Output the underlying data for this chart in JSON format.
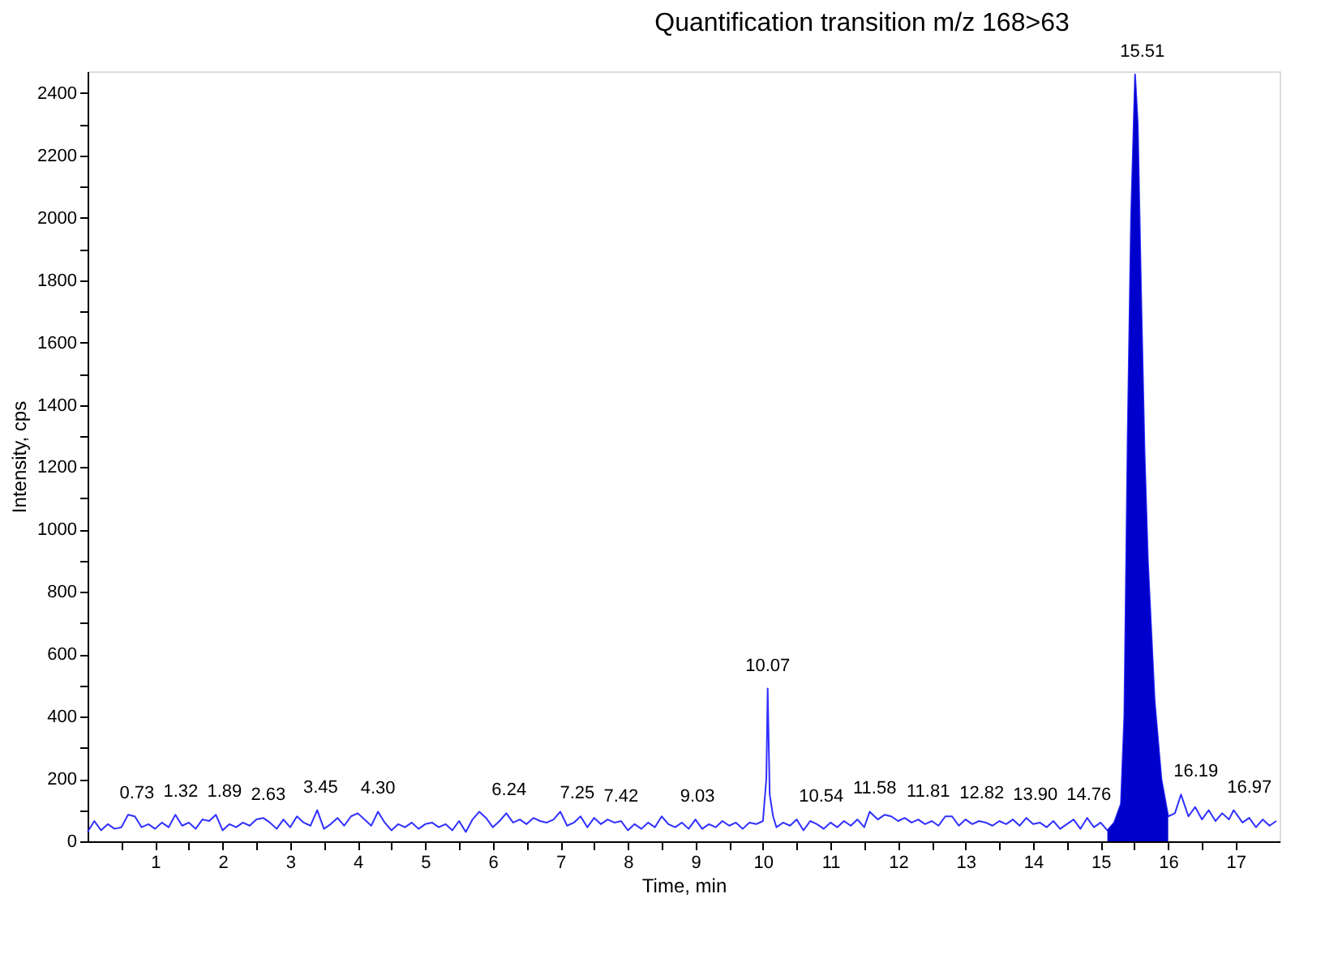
{
  "chart_data": {
    "type": "line",
    "title": "Quantification transition m/z 168>63",
    "xlabel": "Time, min",
    "ylabel": "Intensity, cps",
    "xlim": [
      0,
      17.65
    ],
    "ylim": [
      0,
      2470
    ],
    "xticks": [
      {
        "value": 0.5,
        "label": null
      },
      1,
      {
        "value": 1.5,
        "label": null
      },
      2,
      {
        "value": 2.5,
        "label": null
      },
      3,
      {
        "value": 3.5,
        "label": null
      },
      4,
      {
        "value": 4.5,
        "label": null
      },
      5,
      {
        "value": 5.5,
        "label": null
      },
      6,
      {
        "value": 6.5,
        "label": null
      },
      7,
      {
        "value": 7.5,
        "label": null
      },
      8,
      {
        "value": 8.5,
        "label": null
      },
      9,
      {
        "value": 9.5,
        "label": null
      },
      10,
      {
        "value": 10.5,
        "label": null
      },
      11,
      {
        "value": 11.5,
        "label": null
      },
      12,
      {
        "value": 12.5,
        "label": null
      },
      13,
      {
        "value": 13.5,
        "label": null
      },
      14,
      {
        "value": 14.5,
        "label": null
      },
      15,
      {
        "value": 15.5,
        "label": null
      },
      16,
      {
        "value": 16.5,
        "label": null
      },
      17
    ],
    "yticks": [
      0,
      {
        "value": 100,
        "label": null
      },
      200,
      {
        "value": 300,
        "label": null
      },
      400,
      {
        "value": 500,
        "label": null
      },
      600,
      {
        "value": 700,
        "label": null
      },
      800,
      {
        "value": 900,
        "label": null
      },
      1000,
      {
        "value": 1100,
        "label": null
      },
      1200,
      {
        "value": 1300,
        "label": null
      },
      1400,
      {
        "value": 1500,
        "label": null
      },
      1600,
      {
        "value": 1700,
        "label": null
      },
      1800,
      {
        "value": 1900,
        "label": null
      },
      2000,
      {
        "value": 2100,
        "label": null
      },
      2200,
      {
        "value": 2300,
        "label": null
      },
      2400
    ],
    "grid": false,
    "marker": "none",
    "line_style": "solid",
    "series": [
      {
        "color": "#3030ff",
        "x": [
          0.0,
          0.1,
          0.2,
          0.3,
          0.4,
          0.5,
          0.6,
          0.7,
          0.8,
          0.9,
          1.0,
          1.1,
          1.2,
          1.3,
          1.4,
          1.5,
          1.6,
          1.7,
          1.8,
          1.9,
          2.0,
          2.1,
          2.2,
          2.3,
          2.4,
          2.5,
          2.6,
          2.7,
          2.8,
          2.9,
          3.0,
          3.1,
          3.2,
          3.3,
          3.4,
          3.5,
          3.6,
          3.7,
          3.8,
          3.9,
          4.0,
          4.1,
          4.2,
          4.3,
          4.4,
          4.5,
          4.6,
          4.7,
          4.8,
          4.9,
          5.0,
          5.1,
          5.2,
          5.3,
          5.4,
          5.5,
          5.6,
          5.7,
          5.8,
          5.9,
          6.0,
          6.1,
          6.2,
          6.3,
          6.4,
          6.5,
          6.6,
          6.7,
          6.8,
          6.9,
          7.0,
          7.1,
          7.2,
          7.3,
          7.4,
          7.5,
          7.6,
          7.7,
          7.8,
          7.9,
          8.0,
          8.1,
          8.2,
          8.3,
          8.4,
          8.5,
          8.6,
          8.7,
          8.8,
          8.9,
          9.0,
          9.1,
          9.2,
          9.3,
          9.4,
          9.5,
          9.6,
          9.7,
          9.8,
          9.9,
          10.0,
          10.05,
          10.07,
          10.1,
          10.15,
          10.2,
          10.3,
          10.4,
          10.5,
          10.6,
          10.7,
          10.8,
          10.9,
          11.0,
          11.1,
          11.2,
          11.3,
          11.4,
          11.5,
          11.58,
          11.7,
          11.8,
          11.9,
          12.0,
          12.1,
          12.2,
          12.3,
          12.4,
          12.5,
          12.6,
          12.7,
          12.8,
          12.9,
          13.0,
          13.1,
          13.2,
          13.3,
          13.4,
          13.5,
          13.6,
          13.7,
          13.8,
          13.9,
          14.0,
          14.1,
          14.2,
          14.3,
          14.4,
          14.5,
          14.6,
          14.7,
          14.8,
          14.9,
          15.0,
          15.1,
          15.2,
          15.3,
          15.35,
          15.4,
          15.45,
          15.51,
          15.55,
          15.6,
          15.65,
          15.7,
          15.8,
          15.9,
          16.0,
          16.1,
          16.19,
          16.3,
          16.4,
          16.5,
          16.6,
          16.7,
          16.8,
          16.9,
          16.97,
          17.1,
          17.2,
          17.3,
          17.4,
          17.5,
          17.6
        ],
        "values": [
          30,
          65,
          35,
          55,
          40,
          45,
          85,
          80,
          45,
          55,
          40,
          60,
          45,
          85,
          50,
          60,
          40,
          70,
          65,
          85,
          35,
          55,
          45,
          60,
          50,
          70,
          75,
          60,
          40,
          70,
          45,
          80,
          60,
          50,
          100,
          40,
          55,
          75,
          50,
          80,
          90,
          70,
          50,
          95,
          60,
          35,
          55,
          45,
          60,
          40,
          55,
          60,
          45,
          55,
          35,
          65,
          30,
          70,
          95,
          75,
          45,
          65,
          90,
          60,
          70,
          55,
          75,
          65,
          60,
          70,
          95,
          50,
          60,
          80,
          45,
          75,
          55,
          70,
          60,
          65,
          35,
          55,
          40,
          60,
          45,
          80,
          55,
          45,
          60,
          40,
          70,
          40,
          55,
          45,
          65,
          50,
          60,
          40,
          60,
          55,
          65,
          200,
          490,
          150,
          80,
          45,
          60,
          50,
          70,
          35,
          65,
          55,
          40,
          60,
          45,
          65,
          50,
          70,
          45,
          95,
          70,
          85,
          80,
          65,
          75,
          60,
          70,
          55,
          65,
          50,
          80,
          80,
          50,
          70,
          55,
          65,
          60,
          50,
          65,
          55,
          70,
          50,
          75,
          55,
          60,
          45,
          65,
          40,
          55,
          70,
          40,
          75,
          45,
          60,
          35,
          60,
          120,
          400,
          1300,
          2000,
          2460,
          2300,
          1750,
          1250,
          900,
          450,
          200,
          80,
          90,
          150,
          80,
          110,
          70,
          100,
          65,
          90,
          70,
          100,
          60,
          75,
          45,
          70,
          50,
          65
        ]
      },
      {
        "type": "area",
        "color": "#0000cc",
        "x": [
          15.1,
          15.2,
          15.3,
          15.35,
          15.4,
          15.45,
          15.51,
          15.55,
          15.6,
          15.65,
          15.7,
          15.8,
          15.9,
          16.0
        ],
        "values": [
          35,
          60,
          120,
          400,
          1300,
          2000,
          2460,
          2300,
          1750,
          1250,
          900,
          450,
          200,
          80
        ]
      }
    ],
    "annotations": [
      {
        "text": "0.73",
        "x": 0.73,
        "y": 80
      },
      {
        "text": "1.32",
        "x": 1.32,
        "y": 85
      },
      {
        "text": "1.89",
        "x": 1.89,
        "y": 85
      },
      {
        "text": "2.63",
        "x": 2.63,
        "y": 75
      },
      {
        "text": "3.45",
        "x": 3.45,
        "y": 100
      },
      {
        "text": "4.30",
        "x": 4.3,
        "y": 95
      },
      {
        "text": "6.24",
        "x": 6.24,
        "y": 90
      },
      {
        "text": "7.25",
        "x": 7.25,
        "y": 80
      },
      {
        "text": "7.42",
        "x": 7.42,
        "y": 70
      },
      {
        "text": "9.03",
        "x": 9.03,
        "y": 70
      },
      {
        "text": "10.07",
        "x": 10.07,
        "y": 490
      },
      {
        "text": "10.54",
        "x": 10.54,
        "y": 70
      },
      {
        "text": "11.58",
        "x": 11.58,
        "y": 95
      },
      {
        "text": "11.81",
        "x": 11.81,
        "y": 85
      },
      {
        "text": "12.82",
        "x": 12.82,
        "y": 80
      },
      {
        "text": "13.90",
        "x": 13.9,
        "y": 75
      },
      {
        "text": "14.76",
        "x": 14.76,
        "y": 75
      },
      {
        "text": "15.51",
        "x": 15.51,
        "y": 2460
      },
      {
        "text": "16.19",
        "x": 16.19,
        "y": 150
      },
      {
        "text": "16.97",
        "x": 16.97,
        "y": 100
      }
    ]
  }
}
